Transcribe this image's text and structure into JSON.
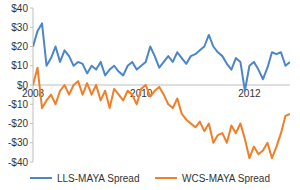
{
  "chart_data": {
    "type": "line",
    "categories": [
      "2008",
      null,
      null,
      null,
      null,
      null,
      null,
      null,
      null,
      null,
      null,
      null,
      null,
      null,
      null,
      null,
      null,
      null,
      null,
      null,
      null,
      null,
      null,
      null,
      "2010",
      null,
      null,
      null,
      null,
      null,
      null,
      null,
      null,
      null,
      null,
      null,
      null,
      null,
      null,
      null,
      null,
      null,
      null,
      null,
      null,
      null,
      null,
      null,
      "2012",
      null,
      null,
      null,
      null,
      null,
      null,
      null,
      null,
      null
    ],
    "series": [
      {
        "name": "LLS-MAYA Spread",
        "color": "#4a86c8",
        "values": [
          20,
          28,
          32,
          10,
          14,
          20,
          12,
          18,
          15,
          10,
          12,
          11,
          6,
          10,
          8,
          12,
          5,
          8,
          10,
          7,
          5,
          10,
          12,
          8,
          10,
          12,
          20,
          15,
          9,
          12,
          15,
          12,
          17,
          14,
          11,
          15,
          16,
          18,
          20,
          26,
          20,
          17,
          15,
          11,
          8,
          14,
          12,
          -3,
          10,
          12,
          8,
          3,
          9,
          17,
          16,
          17,
          10,
          12
        ]
      },
      {
        "name": "WCS-MAYA Spread",
        "color": "#f07f2a",
        "values": [
          0,
          9,
          -12,
          -8,
          -5,
          -10,
          -3,
          0,
          -5,
          0,
          2,
          -5,
          1,
          -5,
          0,
          -8,
          -3,
          -12,
          -2,
          -5,
          -8,
          -3,
          -5,
          -10,
          -2,
          0,
          -6,
          -3,
          -1,
          -5,
          -10,
          -12,
          -7,
          -15,
          -18,
          -20,
          -22,
          -19,
          -24,
          -20,
          -30,
          -26,
          -25,
          -30,
          -21,
          -25,
          -20,
          -28,
          -38,
          -32,
          -36,
          -34,
          -30,
          -38,
          -32,
          -25,
          -16,
          -15
        ]
      }
    ],
    "ylim": [
      -40,
      40
    ],
    "yticks": [
      {
        "value": 40,
        "label": "$40"
      },
      {
        "value": 30,
        "label": "$30"
      },
      {
        "value": 20,
        "label": "$20"
      },
      {
        "value": 10,
        "label": "$10"
      },
      {
        "value": 0,
        "label": "$0"
      },
      {
        "value": -10,
        "label": "-$10"
      },
      {
        "value": -20,
        "label": "-$20"
      },
      {
        "value": -30,
        "label": "-$30"
      },
      {
        "value": -40,
        "label": "-$40"
      }
    ],
    "grid": false,
    "legend": "bottom"
  }
}
